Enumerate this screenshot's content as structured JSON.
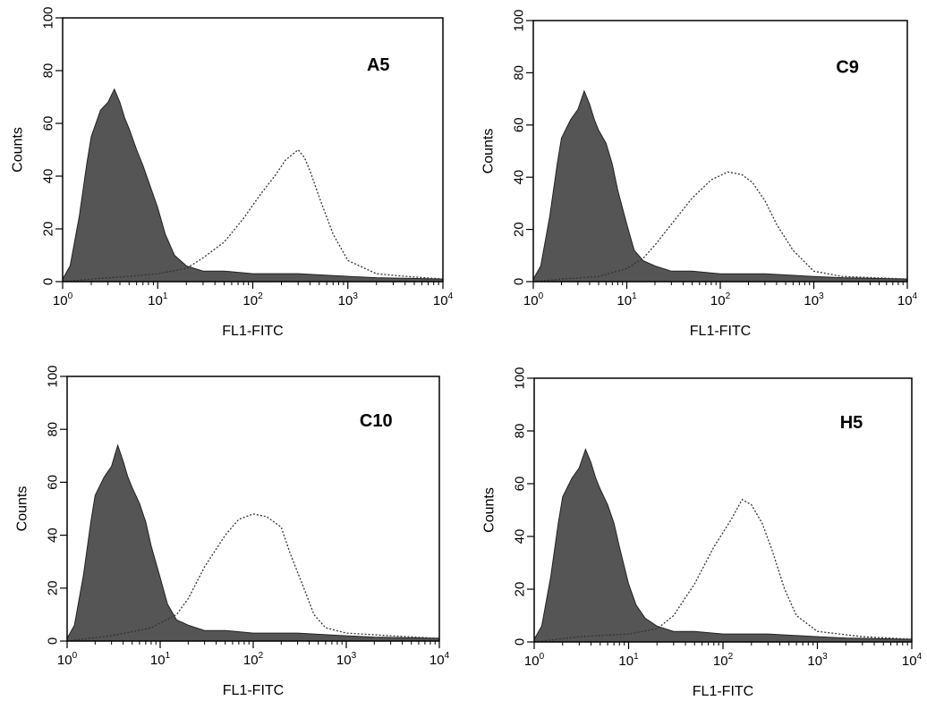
{
  "chart_data": [
    {
      "type": "area",
      "panel_label": "A5",
      "xlabel": "FL1-FITC",
      "ylabel": "Counts",
      "xscale": "log",
      "xlim": [
        1,
        10000
      ],
      "ylim": [
        0,
        100
      ],
      "x_ticks": [
        1,
        10,
        100,
        1000,
        10000
      ],
      "x_tick_labels": [
        {
          "base": "10",
          "exp": "0"
        },
        {
          "base": "10",
          "exp": "1"
        },
        {
          "base": "10",
          "exp": "2"
        },
        {
          "base": "10",
          "exp": "3"
        },
        {
          "base": "10",
          "exp": "4"
        }
      ],
      "y_ticks": [
        0,
        20,
        40,
        60,
        80,
        100
      ],
      "y_tick_labels": [
        "0",
        "20",
        "40",
        "60",
        "80",
        "100"
      ],
      "series": [
        {
          "style": "filled",
          "color": "#555555",
          "points": [
            [
              1,
              1
            ],
            [
              1.2,
              6
            ],
            [
              1.5,
              25
            ],
            [
              1.8,
              45
            ],
            [
              2,
              55
            ],
            [
              2.5,
              65
            ],
            [
              3,
              68
            ],
            [
              3.5,
              73
            ],
            [
              4,
              68
            ],
            [
              4.5,
              62
            ],
            [
              5,
              58
            ],
            [
              6,
              50
            ],
            [
              7,
              44
            ],
            [
              8,
              38
            ],
            [
              10,
              28
            ],
            [
              12,
              18
            ],
            [
              15,
              10
            ],
            [
              20,
              6
            ],
            [
              30,
              4
            ],
            [
              50,
              4
            ],
            [
              100,
              3
            ],
            [
              300,
              3
            ],
            [
              1000,
              2
            ],
            [
              2000,
              1.5
            ],
            [
              10000,
              1
            ]
          ]
        },
        {
          "style": "dotted",
          "color": "#333333",
          "points": [
            [
              1,
              0
            ],
            [
              2,
              1
            ],
            [
              5,
              2
            ],
            [
              10,
              3
            ],
            [
              20,
              5
            ],
            [
              30,
              9
            ],
            [
              50,
              15
            ],
            [
              80,
              24
            ],
            [
              120,
              33
            ],
            [
              170,
              40
            ],
            [
              220,
              46
            ],
            [
              300,
              50
            ],
            [
              350,
              47
            ],
            [
              400,
              42
            ],
            [
              500,
              32
            ],
            [
              700,
              18
            ],
            [
              1000,
              8
            ],
            [
              2000,
              3
            ],
            [
              4000,
              2
            ],
            [
              10000,
              1
            ]
          ]
        }
      ]
    },
    {
      "type": "area",
      "panel_label": "C9",
      "xlabel": "FL1-FITC",
      "ylabel": "Counts",
      "xscale": "log",
      "xlim": [
        1,
        10000
      ],
      "ylim": [
        0,
        100
      ],
      "x_ticks": [
        1,
        10,
        100,
        1000,
        10000
      ],
      "x_tick_labels": [
        {
          "base": "10",
          "exp": "0"
        },
        {
          "base": "10",
          "exp": "1"
        },
        {
          "base": "10",
          "exp": "2"
        },
        {
          "base": "10",
          "exp": "3"
        },
        {
          "base": "10",
          "exp": "4"
        }
      ],
      "y_ticks": [
        0,
        20,
        40,
        60,
        80,
        100
      ],
      "y_tick_labels": [
        "0",
        "20",
        "40",
        "60",
        "80",
        "100"
      ],
      "series": [
        {
          "style": "filled",
          "color": "#555555",
          "points": [
            [
              1,
              1
            ],
            [
              1.2,
              6
            ],
            [
              1.5,
              25
            ],
            [
              1.8,
              45
            ],
            [
              2,
              55
            ],
            [
              2.5,
              62
            ],
            [
              3,
              66
            ],
            [
              3.5,
              73
            ],
            [
              4,
              68
            ],
            [
              4.5,
              62
            ],
            [
              5,
              58
            ],
            [
              6,
              53
            ],
            [
              7,
              45
            ],
            [
              8,
              35
            ],
            [
              10,
              22
            ],
            [
              12,
              12
            ],
            [
              15,
              8
            ],
            [
              20,
              6
            ],
            [
              30,
              4
            ],
            [
              50,
              4
            ],
            [
              100,
              3
            ],
            [
              300,
              3
            ],
            [
              1000,
              2
            ],
            [
              2000,
              1.5
            ],
            [
              10000,
              1
            ]
          ]
        },
        {
          "style": "dotted",
          "color": "#333333",
          "points": [
            [
              1,
              0
            ],
            [
              2,
              1
            ],
            [
              5,
              2
            ],
            [
              10,
              5
            ],
            [
              15,
              9
            ],
            [
              20,
              14
            ],
            [
              30,
              22
            ],
            [
              50,
              32
            ],
            [
              80,
              39
            ],
            [
              120,
              42
            ],
            [
              170,
              41
            ],
            [
              220,
              38
            ],
            [
              300,
              31
            ],
            [
              400,
              22
            ],
            [
              600,
              12
            ],
            [
              1000,
              4
            ],
            [
              2000,
              2
            ],
            [
              10000,
              1
            ]
          ]
        }
      ]
    },
    {
      "type": "area",
      "panel_label": "C10",
      "xlabel": "FL1-FITC",
      "ylabel": "Counts",
      "xscale": "log",
      "xlim": [
        1,
        10000
      ],
      "ylim": [
        0,
        100
      ],
      "x_ticks": [
        1,
        10,
        100,
        1000,
        10000
      ],
      "x_tick_labels": [
        {
          "base": "10",
          "exp": "0"
        },
        {
          "base": "10",
          "exp": "1"
        },
        {
          "base": "10",
          "exp": "2"
        },
        {
          "base": "10",
          "exp": "3"
        },
        {
          "base": "10",
          "exp": "4"
        }
      ],
      "y_ticks": [
        0,
        20,
        40,
        60,
        80,
        100
      ],
      "y_tick_labels": [
        "0",
        "20",
        "40",
        "60",
        "80",
        "100"
      ],
      "series": [
        {
          "style": "filled",
          "color": "#555555",
          "points": [
            [
              1,
              1
            ],
            [
              1.2,
              6
            ],
            [
              1.5,
              25
            ],
            [
              1.8,
              45
            ],
            [
              2,
              55
            ],
            [
              2.5,
              62
            ],
            [
              3,
              66
            ],
            [
              3.5,
              74
            ],
            [
              4,
              68
            ],
            [
              4.5,
              62
            ],
            [
              5,
              58
            ],
            [
              6,
              52
            ],
            [
              7,
              45
            ],
            [
              8,
              36
            ],
            [
              10,
              24
            ],
            [
              12,
              14
            ],
            [
              15,
              8
            ],
            [
              20,
              6
            ],
            [
              30,
              4
            ],
            [
              50,
              4
            ],
            [
              100,
              3
            ],
            [
              300,
              3
            ],
            [
              1000,
              2
            ],
            [
              2000,
              1.5
            ],
            [
              10000,
              1
            ]
          ]
        },
        {
          "style": "dotted",
          "color": "#333333",
          "points": [
            [
              1,
              0
            ],
            [
              3,
              2
            ],
            [
              8,
              5
            ],
            [
              15,
              10
            ],
            [
              20,
              16
            ],
            [
              30,
              28
            ],
            [
              50,
              40
            ],
            [
              70,
              46
            ],
            [
              100,
              48
            ],
            [
              140,
              47
            ],
            [
              200,
              43
            ],
            [
              250,
              33
            ],
            [
              350,
              20
            ],
            [
              450,
              10
            ],
            [
              600,
              5
            ],
            [
              1000,
              3
            ],
            [
              3000,
              2
            ],
            [
              10000,
              1
            ]
          ]
        }
      ]
    },
    {
      "type": "area",
      "panel_label": "H5",
      "xlabel": "FL1-FITC",
      "ylabel": "Counts",
      "xscale": "log",
      "xlim": [
        1,
        10000
      ],
      "ylim": [
        0,
        100
      ],
      "x_ticks": [
        1,
        10,
        100,
        1000,
        10000
      ],
      "x_tick_labels": [
        {
          "base": "10",
          "exp": "0"
        },
        {
          "base": "10",
          "exp": "1"
        },
        {
          "base": "10",
          "exp": "2"
        },
        {
          "base": "10",
          "exp": "3"
        },
        {
          "base": "10",
          "exp": "4"
        }
      ],
      "y_ticks": [
        0,
        20,
        40,
        60,
        80,
        100
      ],
      "y_tick_labels": [
        "0",
        "20",
        "40",
        "60",
        "80",
        "100"
      ],
      "series": [
        {
          "style": "filled",
          "color": "#555555",
          "points": [
            [
              1,
              1
            ],
            [
              1.2,
              6
            ],
            [
              1.5,
              25
            ],
            [
              1.8,
              45
            ],
            [
              2,
              55
            ],
            [
              2.5,
              62
            ],
            [
              3,
              66
            ],
            [
              3.5,
              73
            ],
            [
              4,
              68
            ],
            [
              4.5,
              62
            ],
            [
              5,
              58
            ],
            [
              6,
              52
            ],
            [
              7,
              45
            ],
            [
              8,
              36
            ],
            [
              10,
              22
            ],
            [
              12,
              14
            ],
            [
              15,
              9
            ],
            [
              20,
              6
            ],
            [
              30,
              4
            ],
            [
              50,
              4
            ],
            [
              100,
              3
            ],
            [
              300,
              3
            ],
            [
              1000,
              2
            ],
            [
              2000,
              1.5
            ],
            [
              10000,
              1
            ]
          ]
        },
        {
          "style": "dotted",
          "color": "#333333",
          "points": [
            [
              1,
              0
            ],
            [
              3,
              2
            ],
            [
              10,
              3
            ],
            [
              20,
              5
            ],
            [
              30,
              10
            ],
            [
              50,
              22
            ],
            [
              80,
              36
            ],
            [
              120,
              46
            ],
            [
              160,
              54
            ],
            [
              200,
              52
            ],
            [
              260,
              45
            ],
            [
              330,
              35
            ],
            [
              450,
              20
            ],
            [
              600,
              10
            ],
            [
              1000,
              4
            ],
            [
              3000,
              2
            ],
            [
              10000,
              1
            ]
          ]
        }
      ]
    }
  ]
}
